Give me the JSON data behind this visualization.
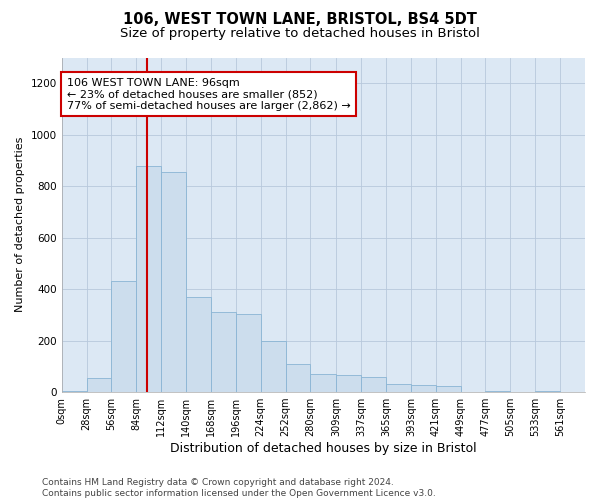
{
  "title1": "106, WEST TOWN LANE, BRISTOL, BS4 5DT",
  "title2": "Size of property relative to detached houses in Bristol",
  "xlabel": "Distribution of detached houses by size in Bristol",
  "ylabel": "Number of detached properties",
  "bar_values": [
    5,
    55,
    430,
    880,
    855,
    370,
    310,
    305,
    200,
    110,
    70,
    65,
    60,
    30,
    28,
    22,
    0,
    5,
    0,
    3,
    0
  ],
  "bin_edges": [
    0,
    28,
    56,
    84,
    112,
    140,
    168,
    196,
    224,
    252,
    280,
    309,
    337,
    365,
    393,
    421,
    449,
    477,
    505,
    533,
    561,
    589
  ],
  "tick_labels": [
    "0sqm",
    "28sqm",
    "56sqm",
    "84sqm",
    "112sqm",
    "140sqm",
    "168sqm",
    "196sqm",
    "224sqm",
    "252sqm",
    "280sqm",
    "309sqm",
    "337sqm",
    "365sqm",
    "393sqm",
    "421sqm",
    "449sqm",
    "477sqm",
    "505sqm",
    "533sqm",
    "561sqm"
  ],
  "bar_color": "#ccdded",
  "bar_edge_color": "#89b4d4",
  "property_line_x": 96,
  "property_line_color": "#cc0000",
  "annotation_box_color": "#cc0000",
  "annotation_line1": "106 WEST TOWN LANE: 96sqm",
  "annotation_line2": "← 23% of detached houses are smaller (852)",
  "annotation_line3": "77% of semi-detached houses are larger (2,862) →",
  "ylim": [
    0,
    1300
  ],
  "yticks": [
    0,
    200,
    400,
    600,
    800,
    1000,
    1200
  ],
  "grid_color": "#b8c8dc",
  "bg_color": "#dce8f4",
  "footnote": "Contains HM Land Registry data © Crown copyright and database right 2024.\nContains public sector information licensed under the Open Government Licence v3.0.",
  "title1_fontsize": 10.5,
  "title2_fontsize": 9.5,
  "xlabel_fontsize": 9,
  "ylabel_fontsize": 8,
  "annotation_fontsize": 8,
  "tick_fontsize": 7,
  "footnote_fontsize": 6.5
}
